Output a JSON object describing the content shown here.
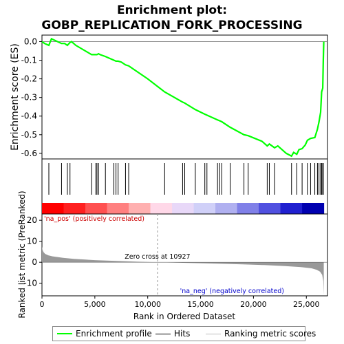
{
  "chart_data": {
    "type": "line",
    "title_line1": "Enrichment plot:",
    "title_line2": "GOBP_REPLICATION_FORK_PROCESSING",
    "es_panel": {
      "ylabel": "Enrichment score (ES)",
      "ylim": [
        -0.63,
        0.035
      ],
      "yticks": [
        0.0,
        -0.1,
        -0.2,
        -0.3,
        -0.4,
        -0.5,
        -0.6
      ],
      "ytick_labels": [
        "0.0",
        "-0.1",
        "-0.2",
        "-0.3",
        "-0.4",
        "-0.5",
        "-0.6"
      ],
      "line_color": "#00ff00",
      "series": {
        "name": "Enrichment profile",
        "x": [
          0,
          250,
          650,
          900,
          1850,
          2150,
          2400,
          2650,
          2800,
          3200,
          4700,
          5100,
          5200,
          5350,
          5500,
          6000,
          6200,
          6800,
          7000,
          7200,
          7500,
          7900,
          8200,
          10000,
          11600,
          13300,
          13500,
          14500,
          15400,
          15600,
          16600,
          16800,
          17000,
          17800,
          19100,
          19500,
          20800,
          21300,
          21500,
          22000,
          22300,
          23100,
          23600,
          23800,
          24100,
          24300,
          24600,
          24900,
          25100,
          25400,
          25800,
          26050,
          26200,
          26350,
          26450,
          26550,
          26600,
          26650
        ],
        "y": [
          0.0,
          -0.01,
          -0.02,
          0.015,
          -0.01,
          -0.01,
          -0.02,
          -0.005,
          0.0,
          -0.02,
          -0.07,
          -0.07,
          -0.07,
          -0.065,
          -0.07,
          -0.08,
          -0.085,
          -0.1,
          -0.105,
          -0.105,
          -0.11,
          -0.125,
          -0.13,
          -0.2,
          -0.27,
          -0.325,
          -0.33,
          -0.365,
          -0.39,
          -0.395,
          -0.42,
          -0.425,
          -0.43,
          -0.46,
          -0.5,
          -0.505,
          -0.535,
          -0.56,
          -0.55,
          -0.57,
          -0.56,
          -0.6,
          -0.615,
          -0.595,
          -0.605,
          -0.58,
          -0.575,
          -0.555,
          -0.53,
          -0.52,
          -0.515,
          -0.47,
          -0.43,
          -0.38,
          -0.27,
          -0.25,
          -0.1,
          0.0
        ]
      }
    },
    "hits_panel": {
      "hit_positions": [
        650,
        1850,
        2400,
        2650,
        4700,
        5100,
        5200,
        5350,
        6000,
        6800,
        7000,
        7200,
        7900,
        8200,
        11600,
        13300,
        13500,
        14500,
        15400,
        15600,
        16600,
        16800,
        17000,
        17800,
        19100,
        19500,
        21300,
        21500,
        22000,
        23600,
        24100,
        24600,
        25100,
        25400,
        25800,
        26050,
        26200,
        26350,
        26450,
        26550,
        26600
      ],
      "heatmap_colors": [
        "#ff0000",
        "#ff2020",
        "#ff5050",
        "#ff8080",
        "#ffb0b0",
        "#ffd8e8",
        "#e8d8f8",
        "#d0d0f8",
        "#b0b0f0",
        "#8080e8",
        "#5050e0",
        "#2020d0",
        "#0000b0"
      ]
    },
    "metric_panel": {
      "ylabel": "Ranked list metric (PreRanked)",
      "ylim": [
        -16,
        23
      ],
      "yticks": [
        20,
        10,
        0,
        -10
      ],
      "ytick_labels": [
        "20",
        "10",
        "0",
        "-10"
      ],
      "zero_cross": 10927,
      "zero_cross_label": "Zero cross at 10927",
      "pos_label": "'na_pos' (positively correlated)",
      "neg_label": "'na_neg' (negatively correlated)",
      "pos_color": "#cc0000",
      "neg_color": "#0000cc",
      "fill_color": "#999999",
      "profile_x": [
        0,
        60,
        150,
        300,
        600,
        1000,
        2000,
        3000,
        5000,
        7000,
        9000,
        10927,
        13000,
        16000,
        19000,
        21000,
        23000,
        24500,
        25500,
        26000,
        26300,
        26500,
        26600,
        26650
      ],
      "profile_y": [
        7.5,
        5.8,
        4.8,
        4.0,
        3.3,
        2.8,
        2.1,
        1.6,
        1.0,
        0.6,
        0.25,
        0.0,
        -0.25,
        -0.6,
        -1.0,
        -1.35,
        -1.8,
        -2.3,
        -2.9,
        -3.6,
        -4.5,
        -6.0,
        -9.0,
        -15.5
      ]
    },
    "xaxis": {
      "xlabel": "Rank in Ordered Dataset",
      "xlim": [
        0,
        27000
      ],
      "xticks": [
        0,
        5000,
        10000,
        15000,
        20000,
        25000
      ],
      "xtick_labels": [
        "0",
        "5,000",
        "10,000",
        "15,000",
        "20,000",
        "25,000"
      ]
    },
    "legend": {
      "items": [
        {
          "label": "Enrichment profile",
          "color": "#00ff00"
        },
        {
          "label": "Hits",
          "color": "#000000"
        },
        {
          "label": "Ranking metric scores",
          "color": "#bbbbbb"
        }
      ]
    }
  }
}
